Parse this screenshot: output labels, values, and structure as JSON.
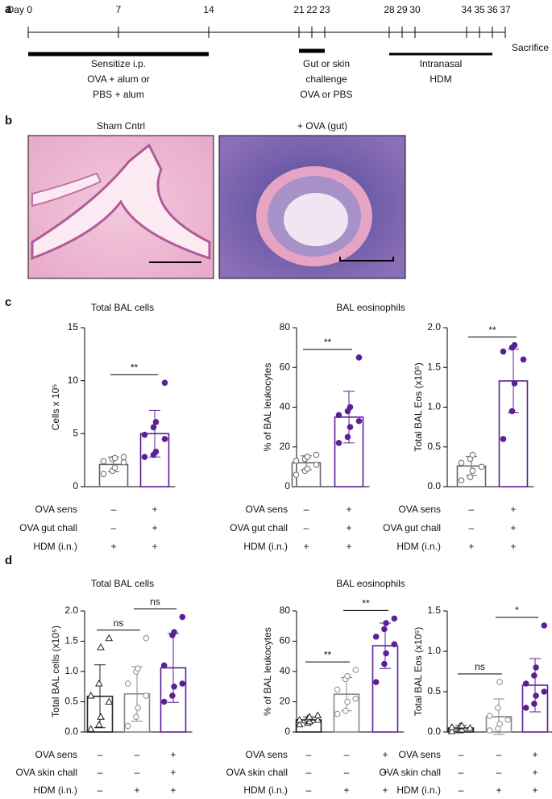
{
  "panel_labels": [
    "a",
    "b",
    "c",
    "d"
  ],
  "timeline": {
    "xlim": [
      0,
      37
    ],
    "ticks": [
      {
        "value": 0,
        "label": "Day 0"
      },
      7,
      14,
      21,
      22,
      23,
      28,
      29,
      30,
      34,
      35,
      36,
      37
    ],
    "bars": [
      {
        "start": 0,
        "end": 14,
        "text": [
          "Sensitize i.p.",
          "OVA + alum or",
          "PBS + alum"
        ]
      },
      {
        "start": 21,
        "end": 23,
        "text": [
          "Gut or skin",
          "challenge",
          "OVA or PBS"
        ]
      },
      {
        "start": 28,
        "end": 36,
        "text": [
          "Intranasal",
          "HDM"
        ]
      }
    ],
    "end_label": "Sacrifice"
  },
  "images": [
    {
      "title": "Sham Cntrl"
    },
    {
      "title": "+ OVA (gut)"
    }
  ],
  "chart_data": [
    {
      "type": "bar",
      "title": "Total BAL cells",
      "ylabel": "Cells x 10⁵",
      "ylim": [
        0,
        15
      ],
      "yticks": [
        0,
        5,
        10,
        15
      ],
      "categories": [
        null,
        null
      ],
      "values": [
        2.1,
        5.0
      ],
      "errors": [
        0.7,
        2.2
      ],
      "points": [
        [
          1.2,
          1.5,
          1.8,
          2.3,
          2.4,
          2.6,
          2.7,
          2.8
        ],
        [
          2.8,
          3.0,
          3.3,
          4.5,
          4.9,
          5.6,
          6.1,
          9.8
        ]
      ],
      "colors": [
        "#666666",
        "#5b1f96"
      ],
      "markers": [
        "circle",
        "dot"
      ],
      "conditions": [
        {
          "name": "OVA sens",
          "values": [
            "–",
            "+"
          ]
        },
        {
          "name": "OVA gut chall",
          "values": [
            "–",
            "+"
          ]
        },
        {
          "name": "HDM (i.n.)",
          "values": [
            "+",
            "+"
          ]
        }
      ],
      "significance": [
        {
          "from": 0,
          "to": 1,
          "label": "**"
        }
      ]
    },
    {
      "type": "bar",
      "title": "BAL eosinophils",
      "ylabel": "% of BAL leukocytes",
      "ylim": [
        0,
        80
      ],
      "yticks": [
        0,
        20,
        40,
        60,
        80
      ],
      "categories": [
        null,
        null
      ],
      "values": [
        12,
        35
      ],
      "errors": [
        3.5,
        13
      ],
      "points": [
        [
          6,
          8,
          9,
          11,
          13,
          14,
          15,
          16
        ],
        [
          22,
          25,
          30,
          33,
          36,
          38,
          40,
          65
        ]
      ],
      "colors": [
        "#666666",
        "#5b1f96"
      ],
      "markers": [
        "circle",
        "dot"
      ],
      "conditions": [
        {
          "name": "OVA sens",
          "values": [
            "–",
            "+"
          ]
        },
        {
          "name": "OVA gut chall",
          "values": [
            "–",
            "+"
          ]
        },
        {
          "name": "HDM (i.n.)",
          "values": [
            "+",
            "+"
          ]
        }
      ],
      "significance": [
        {
          "from": 0,
          "to": 1,
          "label": "**"
        }
      ]
    },
    {
      "type": "bar",
      "ylabel": "Total BAL Eos (x10⁵)",
      "ylim": [
        0,
        2
      ],
      "yticks": [
        {
          "value": 0,
          "label": "0.0"
        },
        0.5,
        {
          "value": 1,
          "label": "1.0"
        },
        1.5,
        {
          "value": 2,
          "label": "2.0"
        }
      ],
      "categories": [
        null,
        null
      ],
      "values": [
        0.26,
        1.33
      ],
      "errors": [
        0.12,
        0.4
      ],
      "points": [
        [
          0.08,
          0.12,
          0.2,
          0.25,
          0.3,
          0.35,
          0.4
        ],
        [
          0.6,
          0.95,
          1.3,
          1.6,
          1.7,
          1.75,
          1.78
        ]
      ],
      "colors": [
        "#666666",
        "#5b1f96"
      ],
      "markers": [
        "circle",
        "dot"
      ],
      "conditions": [
        {
          "name": "OVA sens",
          "values": [
            "–",
            "+"
          ]
        },
        {
          "name": "OVA gut chall",
          "values": [
            "–",
            "+"
          ]
        },
        {
          "name": "HDM (i.n.)",
          "values": [
            "+",
            "+"
          ]
        }
      ],
      "significance": [
        {
          "from": 0,
          "to": 1,
          "label": "**"
        }
      ]
    },
    {
      "type": "bar",
      "title": "Total BAL cells",
      "ylabel": "Total BAL cells (x10⁵)",
      "ylim": [
        0,
        2
      ],
      "yticks": [
        {
          "value": 0,
          "label": "0.0"
        },
        0.5,
        {
          "value": 1,
          "label": "1.0"
        },
        1.5,
        {
          "value": 2,
          "label": "2.0"
        }
      ],
      "categories": [
        null,
        null,
        null
      ],
      "values": [
        0.59,
        0.63,
        1.06
      ],
      "errors": [
        0.52,
        0.45,
        0.57
      ],
      "points": [
        [
          0.05,
          0.12,
          0.25,
          0.5,
          0.6,
          0.8,
          1.4,
          1.55
        ],
        [
          0.1,
          0.25,
          0.4,
          0.6,
          0.8,
          1.0,
          1.05,
          1.55
        ],
        [
          0.5,
          0.6,
          0.75,
          0.8,
          1.1,
          1.6,
          1.65,
          1.9
        ]
      ],
      "colors": [
        "#222222",
        "#888888",
        "#5b1f96"
      ],
      "markers": [
        "triangle",
        "circle",
        "dot"
      ],
      "conditions": [
        {
          "name": "OVA sens",
          "values": [
            "–",
            "–",
            "+"
          ]
        },
        {
          "name": "OVA skin chall",
          "values": [
            "–",
            "–",
            "+"
          ]
        },
        {
          "name": "HDM (i.n.)",
          "values": [
            "–",
            "+",
            "+"
          ]
        }
      ],
      "significance": [
        {
          "from": 0,
          "to": 1,
          "label": "ns"
        },
        {
          "from": 1,
          "to": 2,
          "label": "ns"
        }
      ]
    },
    {
      "type": "bar",
      "title": "BAL eosinophils",
      "ylabel": "% of BAL leukocytes",
      "ylim": [
        0,
        80
      ],
      "yticks": [
        0,
        20,
        40,
        60,
        80
      ],
      "categories": [
        null,
        null,
        null
      ],
      "values": [
        8,
        25,
        57
      ],
      "errors": [
        2,
        11,
        15
      ],
      "points": [
        [
          5,
          6,
          7,
          8,
          8,
          9,
          10,
          11
        ],
        [
          12,
          14,
          20,
          22,
          28,
          35,
          37,
          41
        ],
        [
          33,
          45,
          52,
          58,
          63,
          68,
          72,
          75
        ]
      ],
      "colors": [
        "#222222",
        "#888888",
        "#5b1f96"
      ],
      "markers": [
        "triangle",
        "circle",
        "dot"
      ],
      "conditions": [
        {
          "name": "OVA sens",
          "values": [
            "–",
            "–",
            "+"
          ]
        },
        {
          "name": "OVA skin chall",
          "values": [
            "–",
            "–",
            "+"
          ]
        },
        {
          "name": "HDM (i.n.)",
          "values": [
            "–",
            "+",
            "+"
          ]
        }
      ],
      "significance": [
        {
          "from": 0,
          "to": 1,
          "label": "**"
        },
        {
          "from": 1,
          "to": 2,
          "label": "**"
        }
      ]
    },
    {
      "type": "bar",
      "ylabel": "Total BAL Eos (x10⁵)",
      "ylim": [
        0,
        1.5
      ],
      "yticks": [
        {
          "value": 0,
          "label": "0.0"
        },
        0.5,
        {
          "value": 1,
          "label": "1.0"
        },
        1.5
      ],
      "categories": [
        null,
        null,
        null
      ],
      "values": [
        0.05,
        0.19,
        0.58
      ],
      "errors": [
        0.03,
        0.22,
        0.33
      ],
      "points": [
        [
          0.01,
          0.02,
          0.03,
          0.05,
          0.06,
          0.07,
          0.08
        ],
        [
          0.02,
          0.04,
          0.1,
          0.15,
          0.2,
          0.3,
          0.62
        ],
        [
          0.3,
          0.35,
          0.45,
          0.5,
          0.6,
          0.7,
          0.8,
          1.32
        ]
      ],
      "colors": [
        "#222222",
        "#888888",
        "#5b1f96"
      ],
      "markers": [
        "triangle",
        "circle",
        "dot"
      ],
      "conditions": [
        {
          "name": "OVA sens",
          "values": [
            "–",
            "–",
            "+"
          ]
        },
        {
          "name": "OVA skin chall",
          "values": [
            "–",
            "–",
            "+"
          ]
        },
        {
          "name": "HDM (i.n.)",
          "values": [
            "–",
            "+",
            "+"
          ]
        }
      ],
      "significance": [
        {
          "from": 0,
          "to": 1,
          "label": "ns"
        },
        {
          "from": 1,
          "to": 2,
          "label": "*"
        }
      ]
    }
  ]
}
